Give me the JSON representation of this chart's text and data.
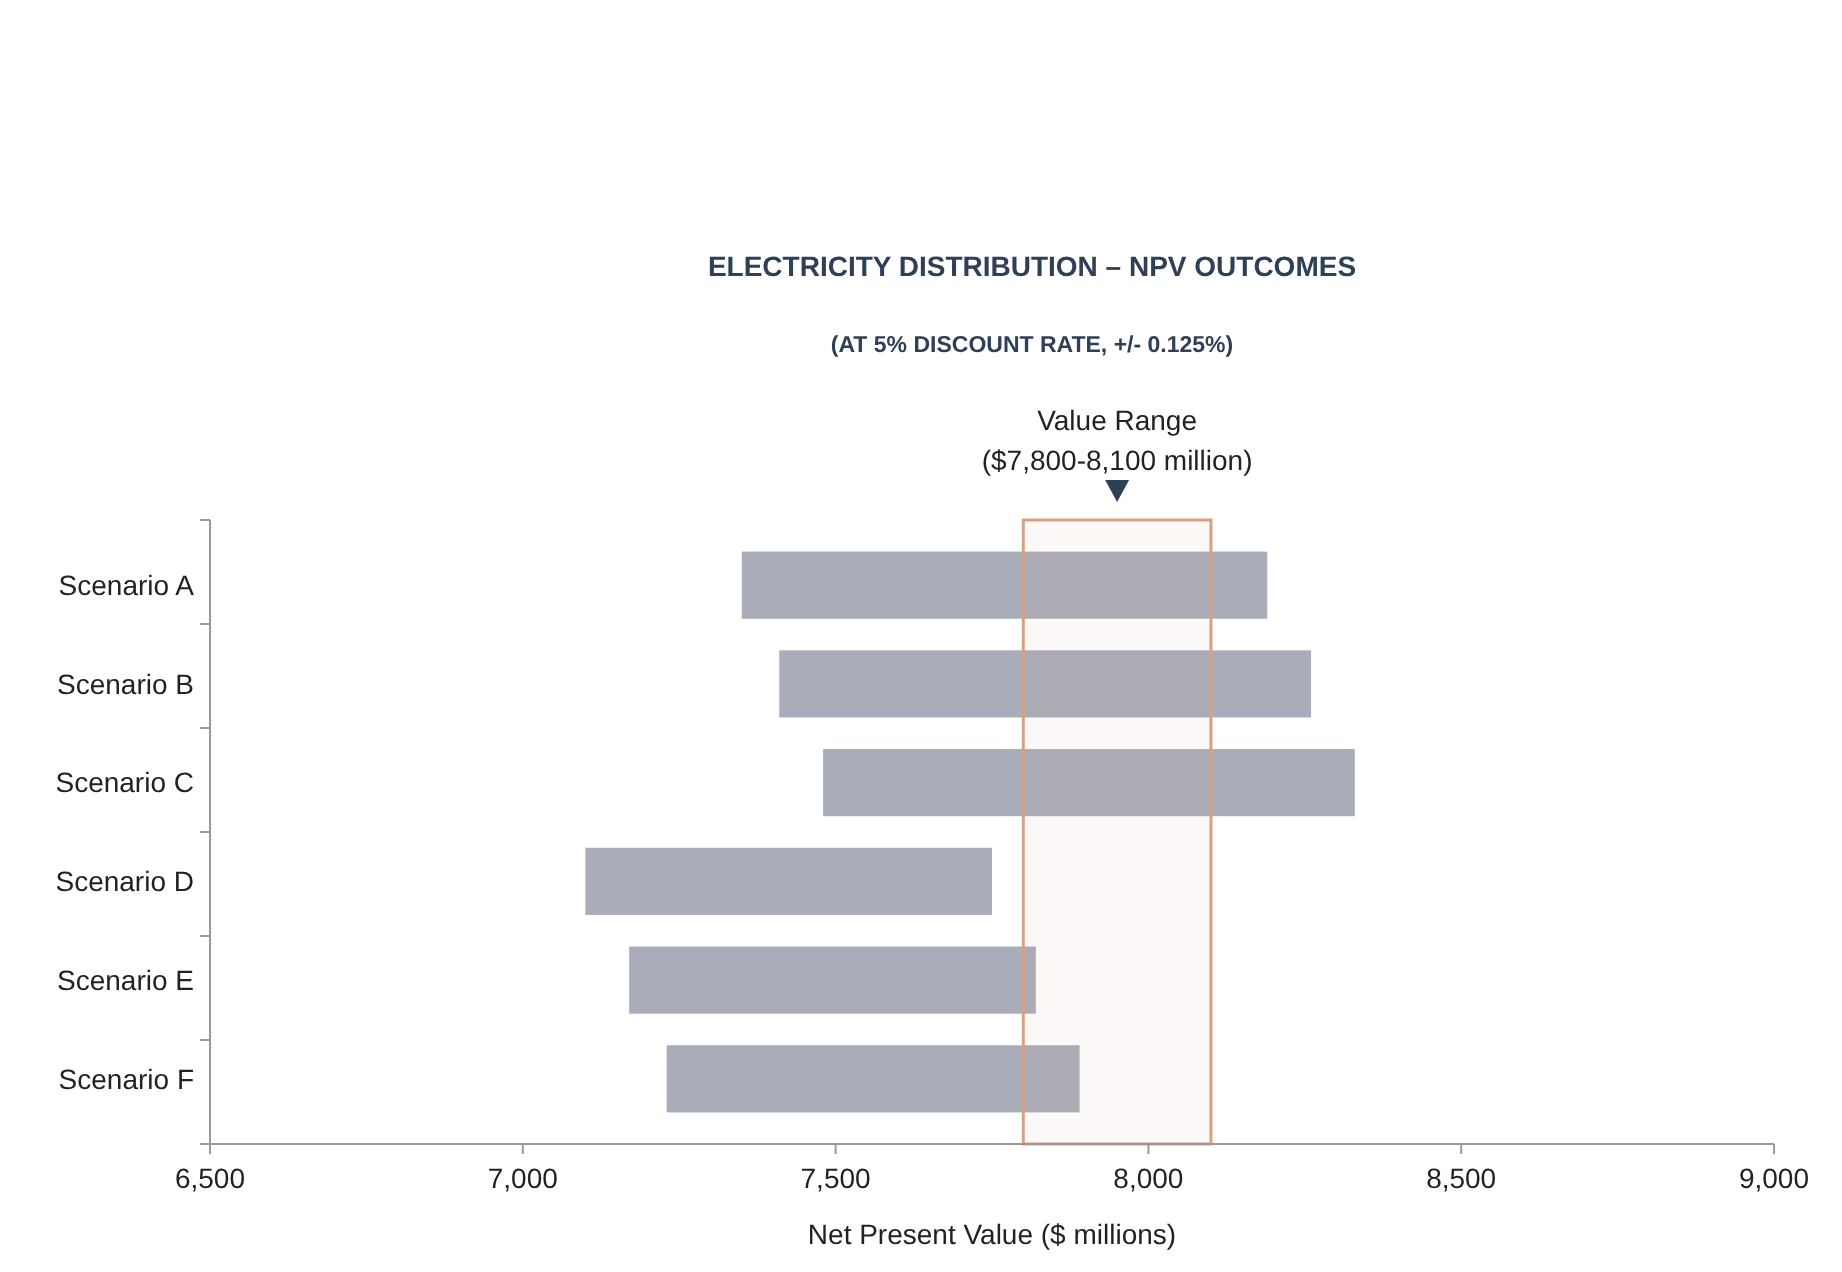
{
  "chart_data": {
    "type": "bar",
    "orientation": "horizontal",
    "title": "ELECTRICITY DISTRIBUTION – NPV OUTCOMES",
    "subtitle": "(AT 5%  DISCOUNT RATE, +/- 0.125%)",
    "xlabel": "Net Present Value ($ millions)",
    "categories": [
      "Scenario A",
      "Scenario B",
      "Scenario C",
      "Scenario D",
      "Scenario E",
      "Scenario F"
    ],
    "base": [
      7350,
      7410,
      7480,
      7100,
      7170,
      7230
    ],
    "values": [
      840,
      850,
      850,
      650,
      650,
      660
    ],
    "color": "#a8adb9",
    "xlim": [
      6500,
      9000
    ],
    "xticks": [
      {
        "value": 6500,
        "label": "6,500"
      },
      {
        "value": 7000,
        "label": "7,000"
      },
      {
        "value": 7500,
        "label": "7,500"
      },
      {
        "value": 8000,
        "label": "8,000"
      },
      {
        "value": 8500,
        "label": "8,500"
      },
      {
        "value": 9000,
        "label": "9,000"
      }
    ],
    "bands": [
      {
        "axis": "x",
        "from": 7800,
        "to": 8100,
        "label": "Value Range\n($7,800-8,100 million)",
        "color": "#d9a183"
      }
    ],
    "grid": false
  }
}
